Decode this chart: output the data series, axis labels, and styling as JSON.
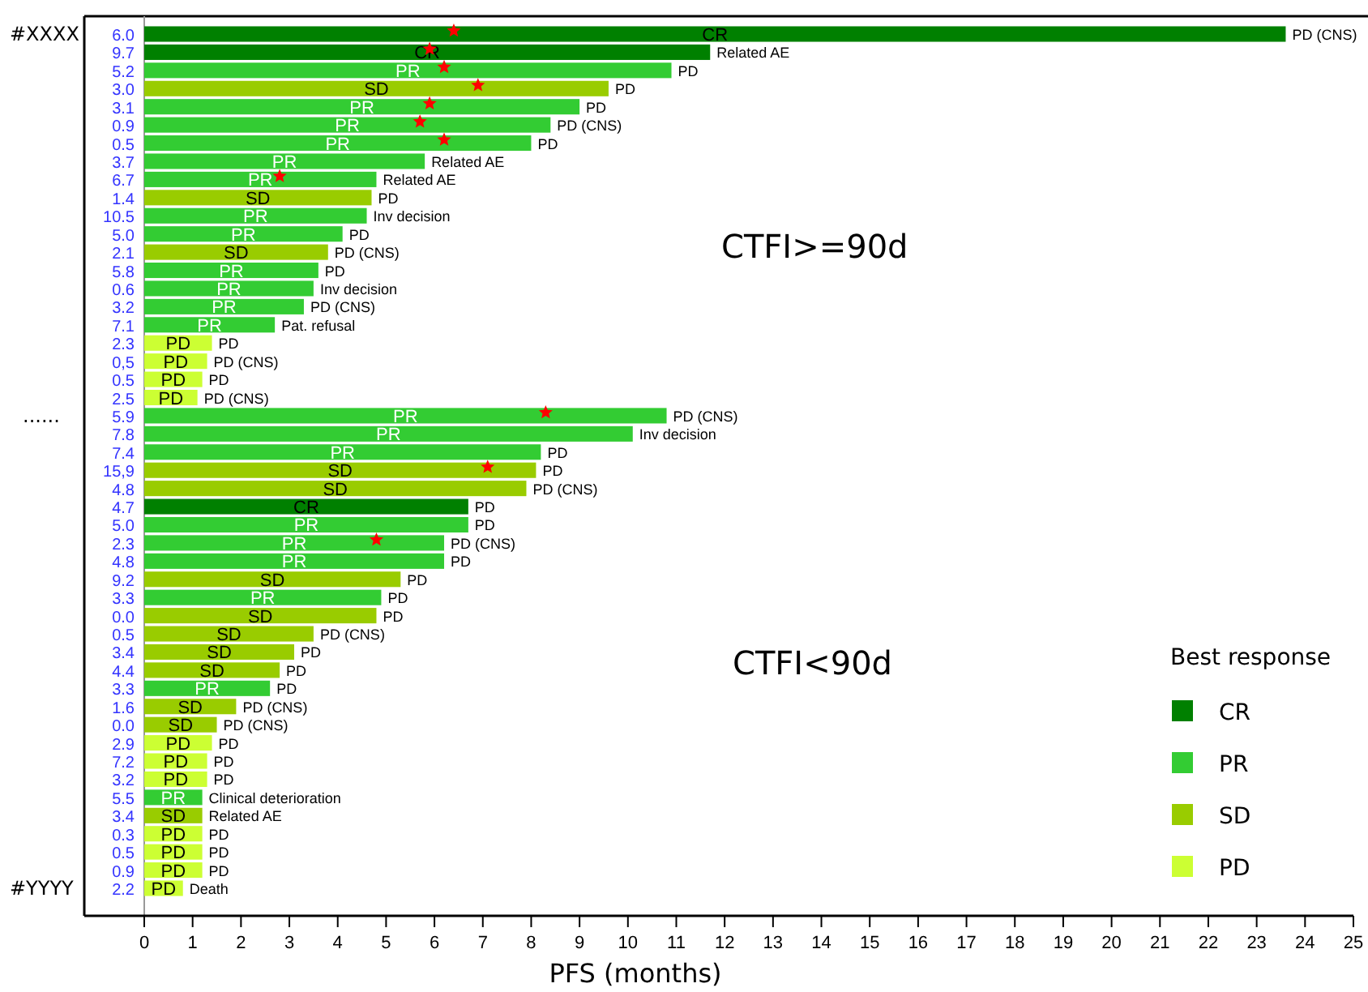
{
  "chart_data": {
    "type": "bar",
    "orientation": "horizontal",
    "xlabel": "PFS (months)",
    "legend_title": "Best response",
    "legend": "bottom right",
    "grid": false,
    "xlim": [
      0,
      25
    ],
    "xticks": [
      0,
      1,
      2,
      3,
      4,
      5,
      6,
      7,
      8,
      9,
      10,
      11,
      12,
      13,
      14,
      15,
      16,
      17,
      18,
      19,
      20,
      21,
      22,
      23,
      24,
      25
    ],
    "annotations": [
      "#XXXX",
      "......",
      "#YYYY",
      "CTFI>=90d",
      "CTFI<90d"
    ],
    "categories": [
      "6.0",
      "9.7",
      "5.2",
      "3.0",
      "3.1",
      "0.9",
      "0.5",
      "3.7",
      "6.7",
      "1.4",
      "10.5",
      "5.0",
      "2.1",
      "5.8",
      "0.6",
      "3.2",
      "7.1",
      "2.3",
      "0,5",
      "0.5",
      "2.5",
      "5.9",
      "7.8",
      "7.4",
      "15,9",
      "4.8",
      "4.7",
      "5.0",
      "2.3",
      "4.8",
      "9.2",
      "3.3",
      "0.0",
      "0.5",
      "3.4",
      "4.4",
      "3.3",
      "1.6",
      "0.0",
      "2.9",
      "7.2",
      "3.2",
      "5.5",
      "3.4",
      "0.3",
      "0.5",
      "0.9",
      "2.2"
    ],
    "series": [
      {
        "name": "CR",
        "color": "#008000",
        "values": [
          23.6,
          11.7,
          null,
          null,
          null,
          null,
          null,
          null,
          null,
          null,
          null,
          null,
          null,
          null,
          null,
          null,
          null,
          null,
          null,
          null,
          null,
          null,
          null,
          null,
          null,
          null,
          6.7,
          null,
          null,
          null,
          null,
          null,
          null,
          null,
          null,
          null,
          null,
          null,
          null,
          null,
          null,
          null,
          null,
          null,
          null,
          null,
          null,
          null
        ],
        "value_labels": [
          "PD (CNS)",
          "Related AE",
          null,
          null,
          null,
          null,
          null,
          null,
          null,
          null,
          null,
          null,
          null,
          null,
          null,
          null,
          null,
          null,
          null,
          null,
          null,
          null,
          null,
          null,
          null,
          null,
          "PD",
          null,
          null,
          null,
          null,
          null,
          null,
          null,
          null,
          null,
          null,
          null,
          null,
          null,
          null,
          null,
          null,
          null,
          null,
          null,
          null,
          null
        ]
      },
      {
        "name": "PR",
        "color": "#33cc33",
        "values": [
          null,
          null,
          10.9,
          null,
          9.0,
          8.4,
          8.0,
          5.8,
          4.8,
          null,
          4.6,
          4.1,
          null,
          3.6,
          3.5,
          3.3,
          2.7,
          null,
          null,
          null,
          null,
          10.8,
          10.1,
          8.2,
          null,
          null,
          null,
          6.7,
          6.2,
          6.2,
          null,
          4.9,
          null,
          null,
          null,
          null,
          2.6,
          null,
          null,
          null,
          null,
          null,
          1.2,
          null,
          null,
          null,
          null,
          null
        ],
        "value_labels": [
          null,
          null,
          "PD",
          null,
          "PD",
          "PD (CNS)",
          "PD",
          "Related AE",
          "Related AE",
          null,
          "Inv decision",
          "PD",
          null,
          "PD",
          "Inv decision",
          "PD (CNS)",
          "Pat. refusal",
          null,
          null,
          null,
          null,
          "PD (CNS)",
          "Inv decision",
          "PD",
          null,
          null,
          null,
          "PD",
          "PD (CNS)",
          "PD",
          null,
          "PD",
          null,
          null,
          null,
          null,
          "PD",
          null,
          null,
          null,
          null,
          null,
          "Clinical deterioration",
          null,
          null,
          null,
          null,
          null
        ]
      },
      {
        "name": "SD",
        "color": "#99cc00",
        "values": [
          null,
          null,
          null,
          9.6,
          null,
          null,
          null,
          null,
          null,
          4.7,
          null,
          null,
          3.8,
          null,
          null,
          null,
          null,
          null,
          null,
          null,
          null,
          null,
          null,
          null,
          8.1,
          7.9,
          null,
          null,
          null,
          null,
          5.3,
          null,
          4.8,
          3.5,
          3.1,
          2.8,
          null,
          1.9,
          1.5,
          null,
          null,
          null,
          null,
          1.2,
          null,
          null,
          null,
          null
        ],
        "value_labels": [
          null,
          null,
          null,
          "PD",
          null,
          null,
          null,
          null,
          null,
          "PD",
          null,
          null,
          "PD (CNS)",
          null,
          null,
          null,
          null,
          null,
          null,
          null,
          null,
          null,
          null,
          null,
          "PD",
          "PD (CNS)",
          null,
          null,
          null,
          null,
          "PD",
          null,
          "PD",
          "PD (CNS)",
          "PD",
          "PD",
          null,
          "PD (CNS)",
          "PD (CNS)",
          null,
          null,
          null,
          null,
          "Related AE",
          null,
          null,
          null,
          null
        ]
      },
      {
        "name": "PD",
        "color": "#ccff33",
        "values": [
          null,
          null,
          null,
          null,
          null,
          null,
          null,
          null,
          null,
          null,
          null,
          null,
          null,
          null,
          null,
          null,
          null,
          1.4,
          1.3,
          1.2,
          1.1,
          null,
          null,
          null,
          null,
          null,
          null,
          null,
          null,
          null,
          null,
          null,
          null,
          null,
          null,
          null,
          null,
          null,
          null,
          1.4,
          1.3,
          1.3,
          null,
          null,
          1.2,
          1.2,
          1.2,
          0.8
        ],
        "value_labels": [
          null,
          null,
          null,
          null,
          null,
          null,
          null,
          null,
          null,
          null,
          null,
          null,
          null,
          null,
          null,
          null,
          null,
          "PD",
          "PD (CNS)",
          "PD",
          "PD (CNS)",
          null,
          null,
          null,
          null,
          null,
          null,
          null,
          null,
          null,
          null,
          null,
          null,
          null,
          null,
          null,
          null,
          null,
          null,
          "PD",
          "PD",
          "PD",
          null,
          null,
          "PD",
          "PD",
          "PD",
          "Death"
        ]
      },
      {
        "type": "scatter",
        "marker": "star",
        "color": "#ff0000",
        "values": [
          6.4,
          5.9,
          6.2,
          6.9,
          5.9,
          5.7,
          6.2,
          null,
          2.8,
          null,
          null,
          null,
          null,
          null,
          null,
          null,
          null,
          null,
          null,
          null,
          null,
          8.3,
          null,
          null,
          7.1,
          null,
          null,
          null,
          4.8,
          null,
          null,
          null,
          null,
          null,
          null,
          null,
          null,
          null,
          null,
          null,
          null,
          null,
          null,
          null,
          null,
          null,
          null,
          null
        ]
      }
    ]
  }
}
